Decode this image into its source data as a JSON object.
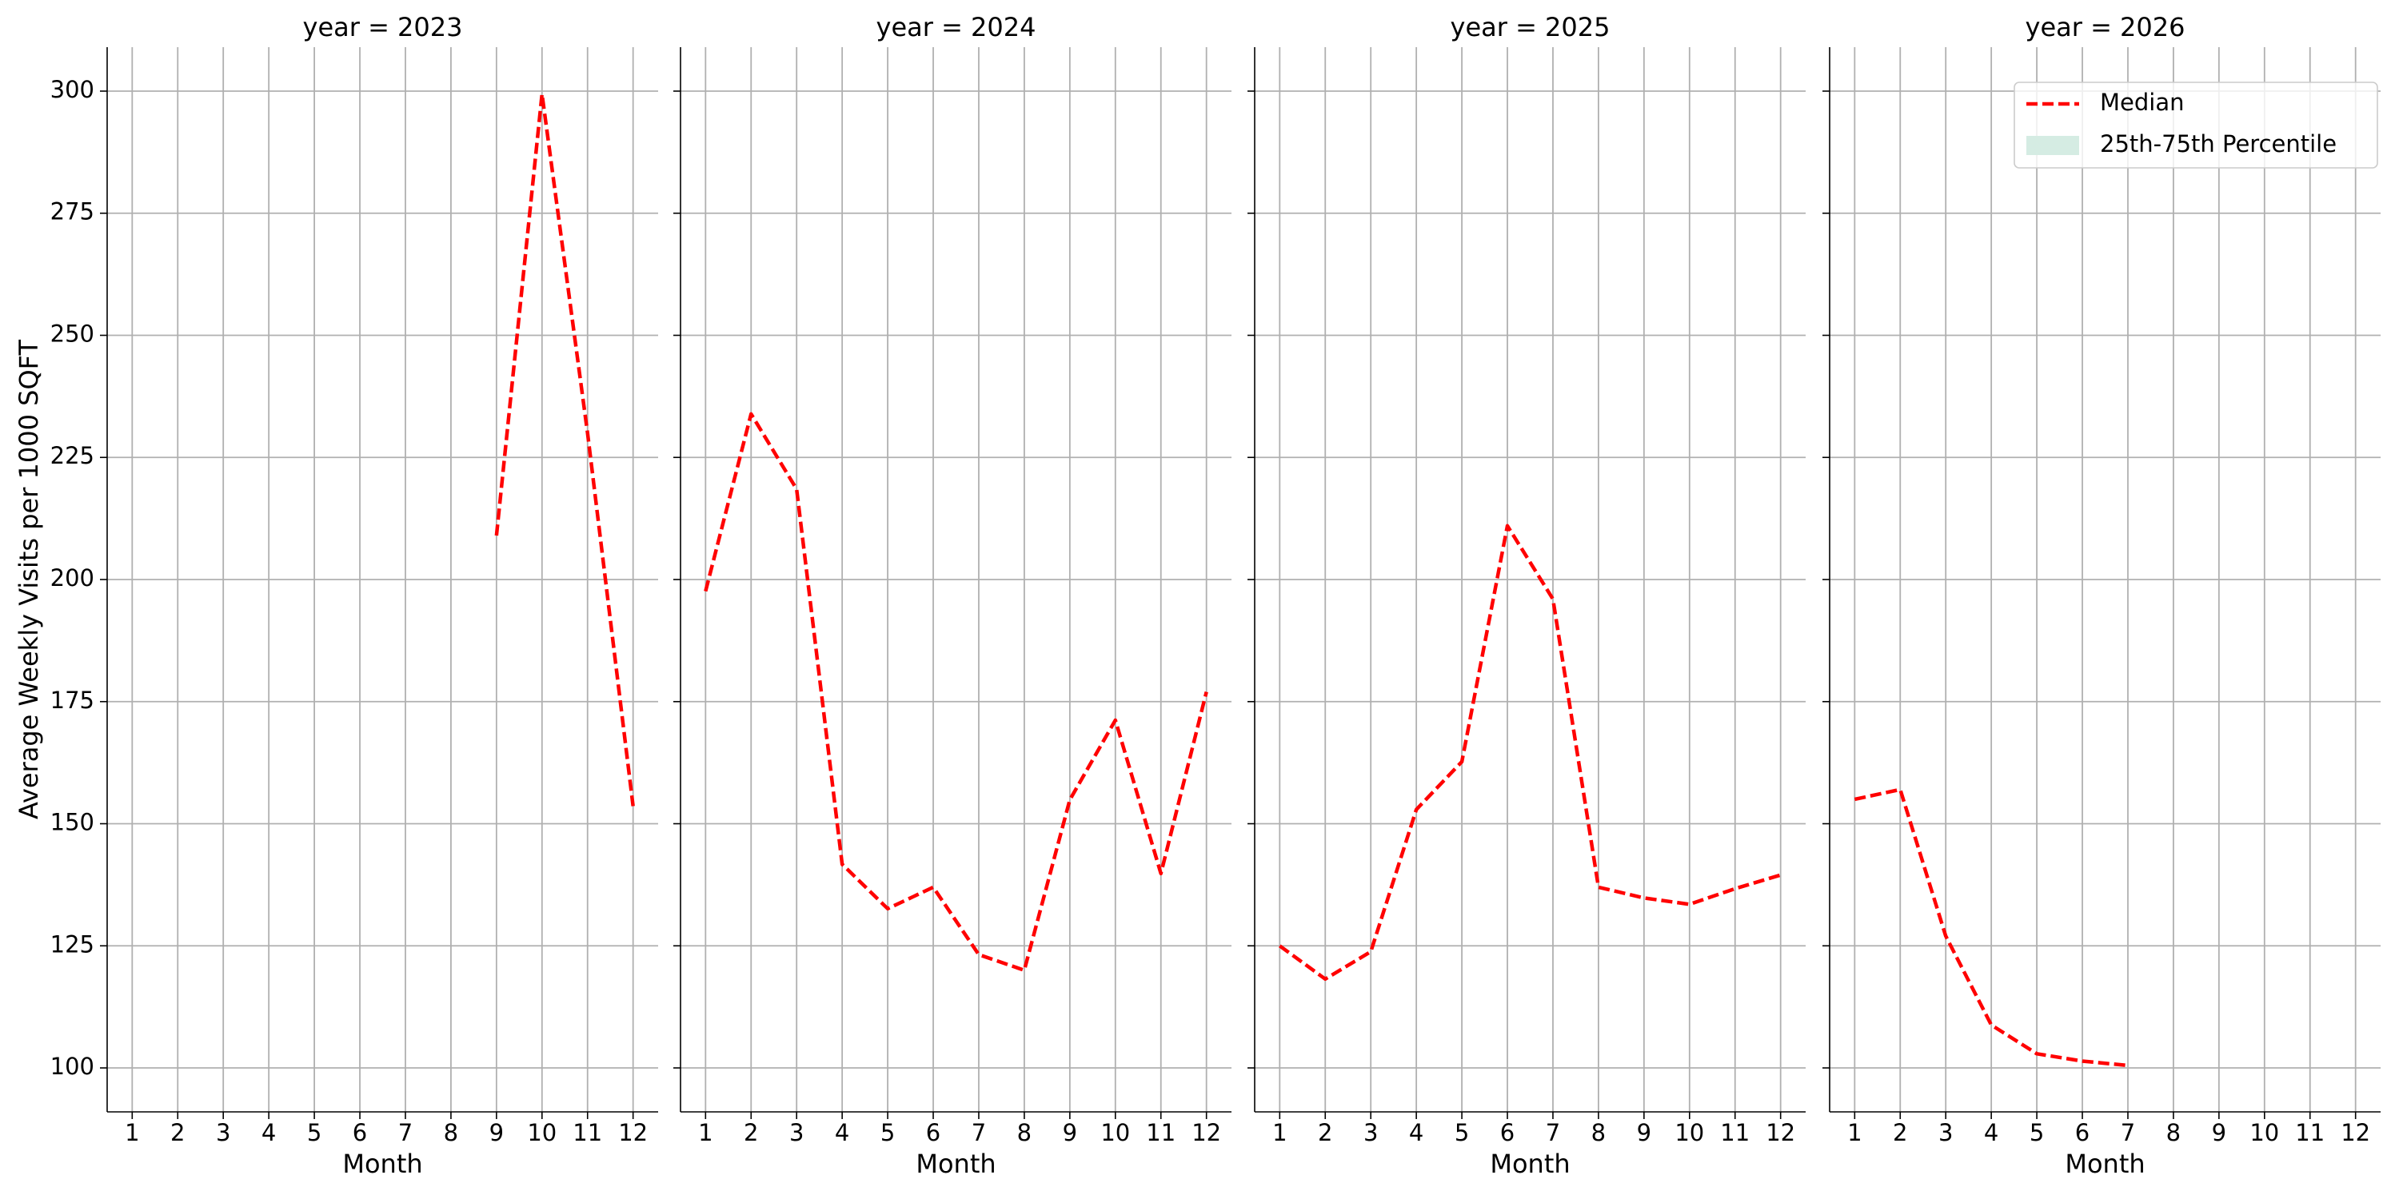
{
  "chart_data": [
    {
      "type": "line",
      "title": "year = 2023",
      "xlabel": "Month",
      "ylabel": "Average Weekly Visits per 1000 SQFT",
      "x": [
        1,
        2,
        3,
        4,
        5,
        6,
        7,
        8,
        9,
        10,
        11,
        12
      ],
      "series": [
        {
          "name": "Median",
          "color": "#ff0000",
          "values": [
            null,
            null,
            null,
            null,
            null,
            null,
            null,
            null,
            209,
            299.4,
            230,
            153.6
          ]
        }
      ],
      "xlim": [
        0.45,
        12.55
      ],
      "xticks": [
        1,
        2,
        3,
        4,
        5,
        6,
        7,
        8,
        9,
        10,
        11,
        12
      ],
      "ylim": [
        91,
        309
      ],
      "yticks": [
        100,
        125,
        150,
        175,
        200,
        225,
        250,
        275,
        300
      ],
      "grid": true
    },
    {
      "type": "line",
      "title": "year = 2024",
      "xlabel": "Month",
      "x": [
        1,
        2,
        3,
        4,
        5,
        6,
        7,
        8,
        9,
        10,
        11,
        12
      ],
      "series": [
        {
          "name": "Median",
          "color": "#ff0000",
          "values": [
            197.6,
            233.9,
            218.5,
            141.7,
            132.6,
            137,
            123.2,
            120,
            154.9,
            171.2,
            139.8,
            177
          ]
        }
      ],
      "xlim": [
        0.45,
        12.55
      ],
      "xticks": [
        1,
        2,
        3,
        4,
        5,
        6,
        7,
        8,
        9,
        10,
        11,
        12
      ],
      "ylim": [
        91,
        309
      ],
      "yticks": [
        100,
        125,
        150,
        175,
        200,
        225,
        250,
        275,
        300
      ],
      "grid": true
    },
    {
      "type": "line",
      "title": "year = 2025",
      "xlabel": "Month",
      "x": [
        1,
        2,
        3,
        4,
        5,
        6,
        7,
        8,
        9,
        10,
        11,
        12
      ],
      "series": [
        {
          "name": "Median",
          "color": "#ff0000",
          "values": [
            125,
            118.2,
            123.8,
            152.9,
            162.7,
            211,
            196,
            137,
            134.8,
            133.5,
            136.7,
            139.5
          ]
        }
      ],
      "xlim": [
        0.45,
        12.55
      ],
      "xticks": [
        1,
        2,
        3,
        4,
        5,
        6,
        7,
        8,
        9,
        10,
        11,
        12
      ],
      "ylim": [
        91,
        309
      ],
      "yticks": [
        100,
        125,
        150,
        175,
        200,
        225,
        250,
        275,
        300
      ],
      "grid": true
    },
    {
      "type": "line",
      "title": "year = 2026",
      "xlabel": "Month",
      "x": [
        1,
        2,
        3,
        4,
        5,
        6,
        7,
        8,
        9,
        10,
        11,
        12
      ],
      "series": [
        {
          "name": "Median",
          "color": "#ff0000",
          "values": [
            155,
            157,
            127,
            108.8,
            102.9,
            101.4,
            100.5,
            null,
            null,
            null,
            null,
            null
          ]
        }
      ],
      "xlim": [
        0.45,
        12.55
      ],
      "xticks": [
        1,
        2,
        3,
        4,
        5,
        6,
        7,
        8,
        9,
        10,
        11,
        12
      ],
      "ylim": [
        91,
        309
      ],
      "yticks": [
        100,
        125,
        150,
        175,
        200,
        225,
        250,
        275,
        300
      ],
      "grid": true,
      "legend": {
        "loc": "upper right",
        "entries": [
          {
            "label": "Median",
            "color": "#ff0000",
            "style": "dashed"
          },
          {
            "label": "25th-75th Percentile",
            "color": "#d5ece3",
            "style": "patch"
          }
        ]
      }
    }
  ]
}
